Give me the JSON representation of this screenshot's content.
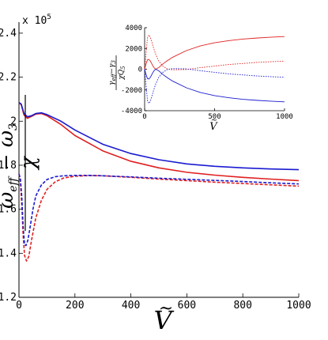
{
  "chart_data": [
    {
      "type": "line",
      "role": "main",
      "xlabel": "Ṽ",
      "ylabel": "(ω_eff − ω_3) / χ",
      "y_multiplier": "x 10",
      "y_multiplier_exp": "5",
      "xlim": [
        0,
        1000
      ],
      "ylim": [
        1.2,
        2.45
      ],
      "xticks": [
        "0",
        "200",
        "400",
        "600",
        "800",
        "1000"
      ],
      "yticks": [
        "1.2",
        "1.4",
        "1.6",
        "1.8",
        "2",
        "2.2",
        "2.4"
      ],
      "series": [
        {
          "color": "#e02020",
          "dash": "solid",
          "x": [
            0,
            8,
            18,
            30,
            45,
            60,
            80,
            100,
            150,
            200,
            300,
            400,
            500,
            600,
            700,
            800,
            900,
            1000
          ],
          "y": [
            2.085,
            2.075,
            2.028,
            2.013,
            2.022,
            2.032,
            2.035,
            2.025,
            1.985,
            1.935,
            1.865,
            1.818,
            1.788,
            1.768,
            1.755,
            1.745,
            1.737,
            1.73
          ]
        },
        {
          "color": "#1a1ad0",
          "dash": "solid",
          "x": [
            0,
            8,
            18,
            30,
            45,
            60,
            80,
            100,
            150,
            200,
            300,
            400,
            500,
            600,
            700,
            800,
            900,
            1000
          ],
          "y": [
            2.085,
            2.078,
            2.035,
            2.02,
            2.025,
            2.035,
            2.038,
            2.03,
            2.0,
            1.96,
            1.895,
            1.853,
            1.825,
            1.806,
            1.795,
            1.788,
            1.783,
            1.78
          ]
        },
        {
          "color": "#e02020",
          "dash": "dashed",
          "x": [
            0,
            5,
            10,
            15,
            20,
            27,
            35,
            45,
            60,
            80,
            100,
            130,
            160,
            200,
            250,
            300,
            400,
            500,
            600,
            700,
            800,
            900,
            1000
          ],
          "y": [
            1.76,
            1.73,
            1.62,
            1.48,
            1.39,
            1.365,
            1.385,
            1.46,
            1.56,
            1.64,
            1.69,
            1.725,
            1.742,
            1.75,
            1.753,
            1.752,
            1.745,
            1.737,
            1.73,
            1.723,
            1.717,
            1.711,
            1.705
          ]
        },
        {
          "color": "#1a1ad0",
          "dash": "dashed",
          "x": [
            0,
            5,
            10,
            15,
            20,
            25,
            32,
            40,
            50,
            60,
            80,
            100,
            130,
            160,
            200,
            250,
            300,
            400,
            500,
            600,
            700,
            800,
            900,
            1000
          ],
          "y": [
            1.76,
            1.74,
            1.66,
            1.52,
            1.44,
            1.435,
            1.46,
            1.52,
            1.6,
            1.66,
            1.71,
            1.735,
            1.748,
            1.752,
            1.754,
            1.754,
            1.752,
            1.747,
            1.741,
            1.736,
            1.731,
            1.726,
            1.72,
            1.715
          ]
        }
      ]
    },
    {
      "type": "line",
      "role": "inset",
      "xlabel": "Ṽ",
      "ylabel_num": "γ_eff − γ_3",
      "ylabel_den": "χ Q_5",
      "xlim": [
        0,
        1000
      ],
      "ylim": [
        -4000,
        4000
      ],
      "xticks": [
        "0",
        "500",
        "1000"
      ],
      "yticks": [
        "4000",
        "2000",
        "0",
        "-2000",
        "-4000"
      ],
      "series": [
        {
          "color": "#e02020",
          "dash": "solid",
          "x": [
            0,
            10,
            20,
            30,
            40,
            50,
            60,
            70,
            80,
            100,
            130,
            160,
            200,
            300,
            400,
            500,
            600,
            700,
            800,
            900,
            1000
          ],
          "y": [
            0,
            500,
            900,
            950,
            800,
            550,
            300,
            100,
            0,
            150,
            500,
            800,
            1150,
            1800,
            2250,
            2550,
            2750,
            2900,
            3000,
            3080,
            3150
          ]
        },
        {
          "color": "#1a1ad0",
          "dash": "solid",
          "x": [
            0,
            10,
            20,
            30,
            40,
            50,
            60,
            70,
            80,
            100,
            130,
            160,
            200,
            300,
            400,
            500,
            600,
            700,
            800,
            900,
            1000
          ],
          "y": [
            0,
            -500,
            -900,
            -950,
            -800,
            -550,
            -300,
            -100,
            0,
            -150,
            -500,
            -800,
            -1150,
            -1800,
            -2250,
            -2550,
            -2750,
            -2900,
            -3000,
            -3080,
            -3150
          ]
        },
        {
          "color": "#e02020",
          "dash": "dotted",
          "x": [
            0,
            10,
            20,
            30,
            40,
            50,
            60,
            80,
            100,
            130,
            160,
            200,
            300,
            400,
            500,
            600,
            700,
            800,
            900,
            1000
          ],
          "y": [
            0,
            1500,
            3000,
            3300,
            3100,
            2700,
            2200,
            1400,
            800,
            300,
            50,
            -60,
            -30,
            150,
            300,
            450,
            550,
            650,
            720,
            780
          ]
        },
        {
          "color": "#1a1ad0",
          "dash": "dotted",
          "x": [
            0,
            10,
            20,
            30,
            40,
            50,
            60,
            80,
            100,
            130,
            160,
            200,
            300,
            400,
            500,
            600,
            700,
            800,
            900,
            1000
          ],
          "y": [
            0,
            -1500,
            -3000,
            -3300,
            -3100,
            -2700,
            -2200,
            -1400,
            -800,
            -300,
            -50,
            60,
            30,
            -150,
            -300,
            -450,
            -550,
            -650,
            -720,
            -780
          ]
        }
      ]
    }
  ]
}
